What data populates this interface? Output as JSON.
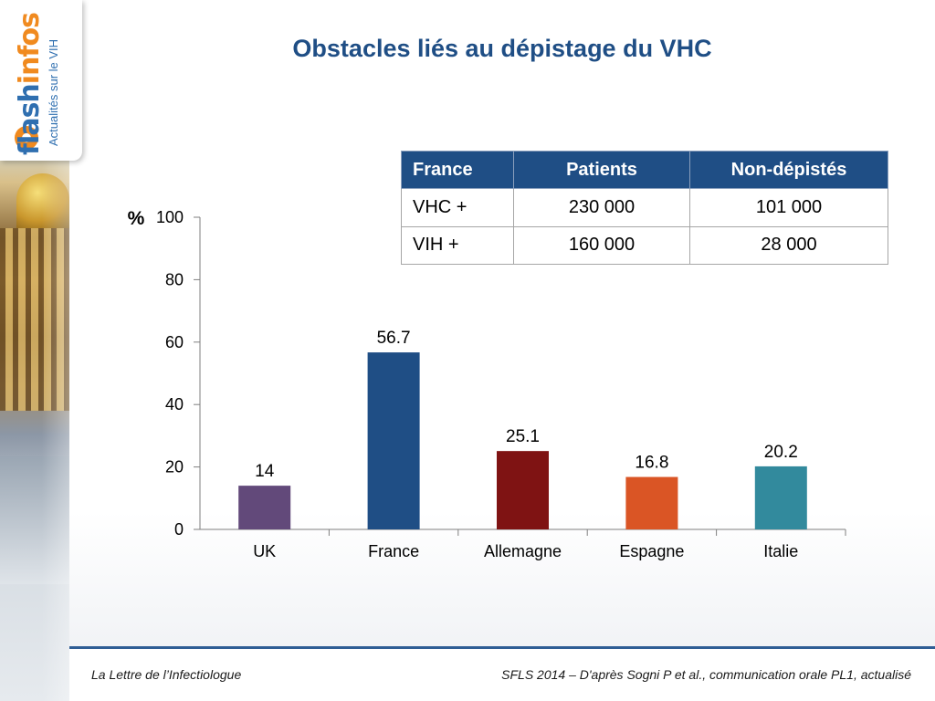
{
  "logo": {
    "brand_main": "flash",
    "brand_accent": "infos",
    "tagline": "Actualités sur le VIH"
  },
  "title": "Obstacles liés au dépistage du VHC",
  "table": {
    "headers": [
      "France",
      "Patients",
      "Non-dépistés"
    ],
    "rows": [
      [
        "VHC +",
        "230 000",
        "101 000"
      ],
      [
        "VIH +",
        "160 000",
        "28 000"
      ]
    ]
  },
  "chart_data": {
    "type": "bar",
    "title": "",
    "xlabel": "",
    "ylabel": "%",
    "categories": [
      "UK",
      "France",
      "Allemagne",
      "Espagne",
      "Italie"
    ],
    "values": [
      14,
      56.7,
      25.1,
      16.8,
      20.2
    ],
    "value_labels": [
      "14",
      "56.7",
      "25.1",
      "16.8",
      "20.2"
    ],
    "colors": [
      "#62497a",
      "#1f4e85",
      "#7f1313",
      "#da5525",
      "#328a9d"
    ],
    "ylim": [
      0,
      100
    ],
    "yticks": [
      0,
      20,
      40,
      60,
      80,
      100
    ],
    "grid": false,
    "legend": "none"
  },
  "footer": {
    "left": "La Lettre de l’Infectiologue",
    "right": "SFLS 2014 – D'après Sogni P et al., communication orale PL1, actualisé"
  }
}
